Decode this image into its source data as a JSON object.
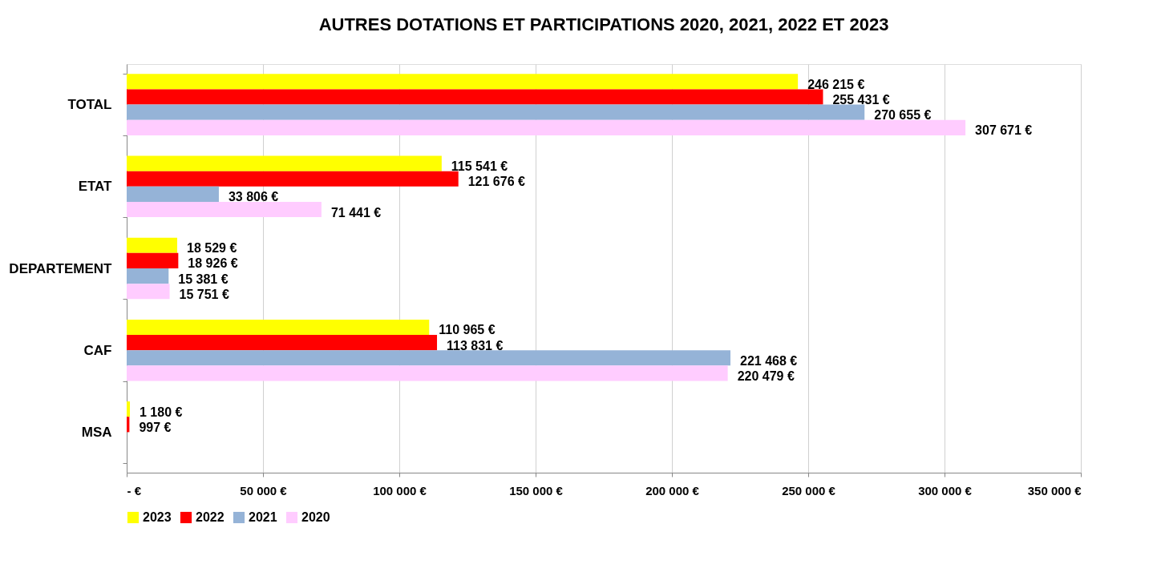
{
  "chart_data": {
    "type": "bar",
    "orientation": "horizontal",
    "title": "AUTRES DOTATIONS ET PARTICIPATIONS 2020, 2021, 2022 ET 2023",
    "categories": [
      "TOTAL",
      "ETAT",
      "DEPARTEMENT",
      "CAF",
      "MSA"
    ],
    "series": [
      {
        "name": "2023",
        "color": "#ffff00",
        "values": [
          246215,
          115541,
          18529,
          110965,
          1180
        ],
        "value_labels": [
          "246 215 €",
          "115 541 €",
          "18 529 €",
          "110 965 €",
          "1 180 €"
        ]
      },
      {
        "name": "2022",
        "color": "#ff0000",
        "values": [
          255431,
          121676,
          18926,
          113831,
          997
        ],
        "value_labels": [
          "255 431 €",
          "121 676 €",
          "18 926 €",
          "113 831 €",
          "997 €"
        ]
      },
      {
        "name": "2021",
        "color": "#95b3d7",
        "values": [
          270655,
          33806,
          15381,
          221468,
          null
        ],
        "value_labels": [
          "270 655 €",
          "33 806 €",
          "15 381 €",
          "221 468 €",
          null
        ]
      },
      {
        "name": "2020",
        "color": "#ffccff",
        "values": [
          307671,
          71441,
          15751,
          220479,
          null
        ],
        "value_labels": [
          "307 671 €",
          "71 441 €",
          "15 751 €",
          "220 479 €",
          null
        ]
      }
    ],
    "xlim": [
      0,
      350000
    ],
    "xticks": [
      {
        "value": 0,
        "label": "- €"
      },
      {
        "value": 50000,
        "label": "50 000 €"
      },
      {
        "value": 100000,
        "label": "100 000 €"
      },
      {
        "value": 150000,
        "label": "150 000 €"
      },
      {
        "value": 200000,
        "label": "200 000 €"
      },
      {
        "value": 250000,
        "label": "250 000 €"
      },
      {
        "value": 300000,
        "label": "300 000 €"
      },
      {
        "value": 350000,
        "label": "350 000 €"
      }
    ],
    "grid": "x",
    "legend": "bottom"
  }
}
